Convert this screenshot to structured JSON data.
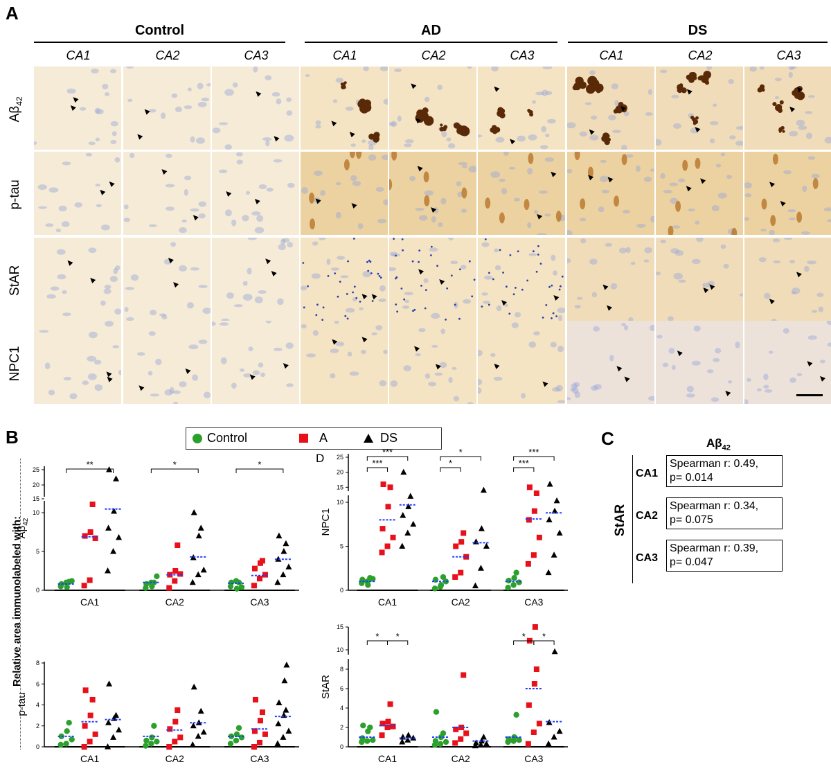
{
  "panelA": {
    "letter": "A",
    "groups": [
      {
        "title": "Control",
        "regions": [
          "CA1",
          "CA2",
          "CA3"
        ]
      },
      {
        "title": "AD",
        "regions": [
          "CA1",
          "CA2",
          "CA3"
        ]
      },
      {
        "title": "DS",
        "regions": [
          "CA1",
          "CA2",
          "CA3"
        ]
      }
    ],
    "rows": [
      "Aβ42",
      "p-tau",
      "StAR",
      "NPC1"
    ],
    "row_label_base": [
      "Aβ",
      "p-tau",
      "StAR",
      "NPC1"
    ],
    "row_label_sub": [
      "42",
      "",
      "",
      ""
    ],
    "colors": {
      "control_bg": "#f5ebd6",
      "ad_bg": "#f4e4c4",
      "ds_bg": "#f0dcb8",
      "plaque": "#5a2a08",
      "nuclei": "#9aa6d8"
    }
  },
  "panelB": {
    "letter": "B",
    "y_axis_title": "Relative area immunolabeled with:",
    "legend": [
      {
        "name": "Control",
        "color": "#2ca02c",
        "marker": "circle"
      },
      {
        "name": "A",
        "color": "#e8101a",
        "marker": "square"
      },
      {
        "name": "DS",
        "color": "#000000",
        "marker": "triangle"
      }
    ],
    "mean_line_color": "#1f3cff"
  },
  "panelD": {
    "letter": "D"
  },
  "chart_data": [
    {
      "type": "scatter",
      "ylabel": "Aβ42",
      "ylabel_base": "Aβ",
      "ylabel_sub": "42",
      "categories": [
        "CA1",
        "CA2",
        "CA3"
      ],
      "y_ticks": [
        "0",
        "5",
        "10",
        "15",
        "20",
        "25"
      ],
      "broken_axis": true,
      "series": [
        {
          "name": "Control",
          "values": [
            [
              0.5,
              1.0,
              1.2,
              0.8,
              0.4,
              1.1
            ],
            [
              0.3,
              1.0,
              1.8,
              0.8,
              0.5,
              1.0
            ],
            [
              0.5,
              1.2,
              0.4,
              1.0,
              0.2,
              1.0
            ]
          ]
        },
        {
          "name": "A",
          "values": [
            [
              0.6,
              1.3,
              6.7,
              7.0,
              7.5,
              13.0
            ],
            [
              0.3,
              1.2,
              2.1,
              2.0,
              2.5,
              5.8
            ],
            [
              0.6,
              1.5,
              2.0,
              2.8,
              3.5,
              3.8
            ]
          ]
        },
        {
          "name": "DS",
          "values": [
            [
              2.5,
              5.0,
              6.8,
              8.0,
              10.5,
              22.0,
              25.0
            ],
            [
              1.0,
              2.0,
              2.6,
              4.2,
              7.0,
              8.0,
              10.0
            ],
            [
              1.0,
              2.0,
              3.0,
              4.0,
              5.0,
              6.0,
              7.0
            ]
          ]
        }
      ],
      "means": [
        [
          0.8,
          6.9,
          11.3
        ],
        [
          1.0,
          2.0,
          4.3
        ],
        [
          0.9,
          1.9,
          4.0
        ]
      ],
      "significance": [
        {
          "region": "CA1",
          "pair": [
            "Control",
            "DS"
          ],
          "label": "**"
        },
        {
          "region": "CA2",
          "pair": [
            "Control",
            "DS"
          ],
          "label": "*"
        },
        {
          "region": "CA3",
          "pair": [
            "Control",
            "DS"
          ],
          "label": "*"
        }
      ]
    },
    {
      "type": "scatter",
      "ylabel": "NPC1",
      "categories": [
        "CA1",
        "CA2",
        "CA3"
      ],
      "y_ticks": [
        "0",
        "5",
        "10",
        "15",
        "20",
        "25"
      ],
      "broken_axis": true,
      "series": [
        {
          "name": "Control",
          "values": [
            [
              0.8,
              1.0,
              1.3,
              1.2,
              0.6,
              1.4
            ],
            [
              0.2,
              0.4,
              1.0,
              1.2,
              0.6,
              1.5
            ],
            [
              0.3,
              0.6,
              0.9,
              1.1,
              1.4,
              2.0
            ]
          ]
        },
        {
          "name": "A",
          "values": [
            [
              4.3,
              5.0,
              6.0,
              7.0,
              9.5,
              15.0,
              16.0
            ],
            [
              1.5,
              2.0,
              3.8,
              5.0,
              5.5,
              6.5
            ],
            [
              3.0,
              4.0,
              6.0,
              8.0,
              9.0,
              13.0,
              15.0
            ]
          ]
        },
        {
          "name": "DS",
          "values": [
            [
              5.0,
              6.5,
              7.5,
              8.5,
              9.5,
              12.0,
              20.0
            ],
            [
              0.5,
              2.5,
              5.0,
              5.5,
              7.0,
              14.0
            ],
            [
              2.0,
              4.0,
              6.5,
              8.0,
              9.0,
              10.5,
              16.0
            ]
          ]
        }
      ],
      "means": [
        [
          1.0,
          8.0,
          9.7
        ],
        [
          1.0,
          3.8,
          5.4
        ],
        [
          1.0,
          8.1,
          8.8
        ]
      ],
      "significance": [
        {
          "region": "CA1",
          "pair": [
            "Control",
            "A"
          ],
          "label": "***"
        },
        {
          "region": "CA1",
          "pair": [
            "Control",
            "DS"
          ],
          "label": "***"
        },
        {
          "region": "CA2",
          "pair": [
            "Control",
            "A"
          ],
          "label": "*"
        },
        {
          "region": "CA2",
          "pair": [
            "Control",
            "DS"
          ],
          "label": "*"
        },
        {
          "region": "CA3",
          "pair": [
            "Control",
            "A"
          ],
          "label": "***"
        },
        {
          "region": "CA3",
          "pair": [
            "Control",
            "DS"
          ],
          "label": "***"
        }
      ]
    },
    {
      "type": "scatter",
      "ylabel": "p-tau",
      "categories": [
        "CA1",
        "CA2",
        "CA3"
      ],
      "y_ticks": [
        "0",
        "2",
        "4",
        "6",
        "8"
      ],
      "ylim": [
        0,
        8
      ],
      "series": [
        {
          "name": "Control",
          "values": [
            [
              0.2,
              0.3,
              0.7,
              1.0,
              1.5,
              2.3
            ],
            [
              0.1,
              0.3,
              0.5,
              0.6,
              0.9,
              2.0
            ],
            [
              0.3,
              0.6,
              0.9,
              1.0,
              1.2,
              1.8
            ]
          ]
        },
        {
          "name": "A",
          "values": [
            [
              0.0,
              0.5,
              1.2,
              2.0,
              3.0,
              4.5,
              5.4
            ],
            [
              0.0,
              0.5,
              0.9,
              1.7,
              2.4,
              3.5
            ],
            [
              0.0,
              0.4,
              1.2,
              1.5,
              2.5,
              3.3,
              4.5
            ]
          ]
        },
        {
          "name": "DS",
          "values": [
            [
              0.0,
              0.9,
              1.6,
              2.3,
              2.7,
              3.0,
              6.0
            ],
            [
              0.2,
              1.0,
              1.4,
              2.0,
              2.3,
              3.4,
              5.7
            ],
            [
              0.3,
              0.9,
              1.5,
              2.2,
              3.0,
              3.5,
              4.2,
              6.3,
              7.8
            ]
          ]
        }
      ],
      "means": [
        [
          1.0,
          2.4,
          2.6
        ],
        [
          1.0,
          1.6,
          2.3
        ],
        [
          1.0,
          1.7,
          2.9
        ]
      ]
    },
    {
      "type": "scatter",
      "ylabel": "StAR",
      "categories": [
        "CA1",
        "CA2",
        "CA3"
      ],
      "y_ticks": [
        "0",
        "2",
        "4",
        "6",
        "8",
        "10",
        "15"
      ],
      "broken_axis": true,
      "series": [
        {
          "name": "Control",
          "values": [
            [
              0.5,
              0.6,
              0.7,
              0.9,
              1.6,
              2.0,
              2.2
            ],
            [
              0.2,
              0.3,
              0.5,
              0.6,
              1.0,
              1.4,
              3.6
            ],
            [
              0.5,
              0.6,
              0.7,
              0.8,
              1.0,
              3.3
            ]
          ]
        },
        {
          "name": "A",
          "values": [
            [
              1.2,
              2.0,
              2.1,
              2.4,
              2.6,
              4.4
            ],
            [
              0.4,
              0.8,
              1.4,
              1.8,
              2.0,
              7.4
            ],
            [
              0.3,
              1.5,
              2.4,
              4.3,
              6.5,
              8.0,
              12.0,
              15.0
            ]
          ]
        },
        {
          "name": "DS",
          "values": [
            [
              0.5,
              0.7,
              0.9,
              1.0,
              1.2
            ],
            [
              0.1,
              0.2,
              0.3,
              0.4,
              0.6,
              1.0
            ],
            [
              0.3,
              1.0,
              1.6,
              2.5,
              9.8
            ]
          ]
        }
      ],
      "means": [
        [
          1.0,
          2.2,
          0.9
        ],
        [
          1.0,
          2.0,
          0.6
        ],
        [
          1.0,
          6.0,
          2.6
        ]
      ],
      "significance": [
        {
          "region": "CA1",
          "pair": [
            "Control",
            "A"
          ],
          "label": "*"
        },
        {
          "region": "CA1",
          "pair": [
            "A",
            "DS"
          ],
          "label": "*"
        },
        {
          "region": "CA3",
          "pair": [
            "Control",
            "A"
          ],
          "label": "*"
        },
        {
          "region": "CA3",
          "pair": [
            "A",
            "DS"
          ],
          "label": "*"
        }
      ]
    }
  ],
  "panelC": {
    "letter": "C",
    "header": "Aβ42",
    "header_base": "Aβ",
    "header_sub": "42",
    "side_label": "StAR",
    "rows": [
      {
        "region": "CA1",
        "line1": "Spearman r: 0.49,",
        "line2": "p= 0.014"
      },
      {
        "region": "CA2",
        "line1": "Spearman r: 0.34,",
        "line2": "p= 0.075"
      },
      {
        "region": "CA3",
        "line1": "Spearman r: 0.39,",
        "line2": "p= 0.047"
      }
    ]
  }
}
